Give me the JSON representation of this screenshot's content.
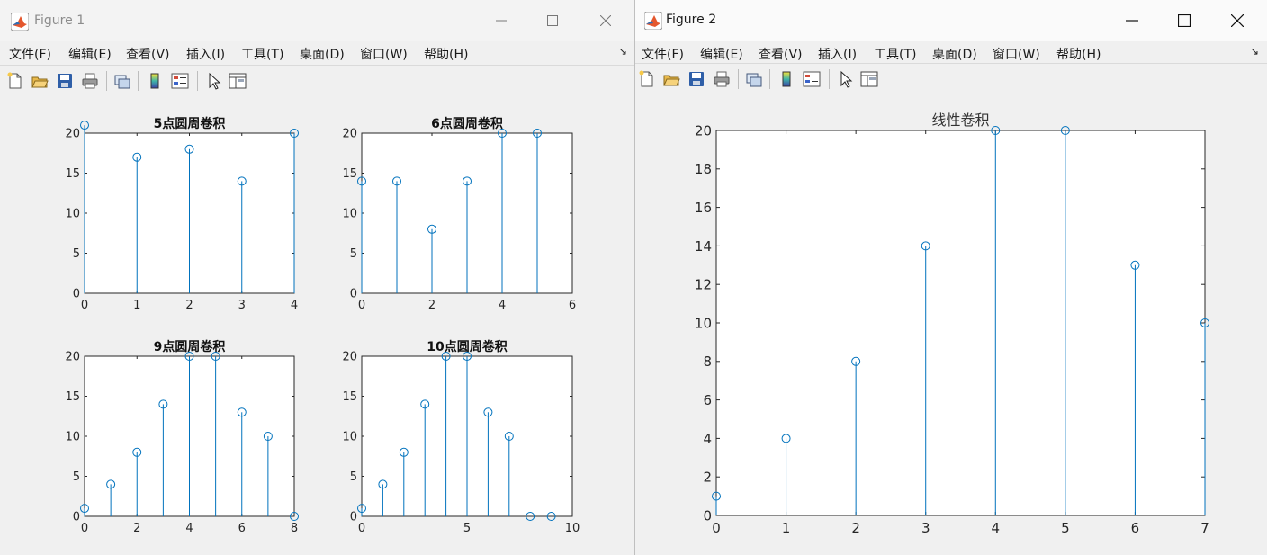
{
  "figure1": {
    "title": "Figure 1",
    "menu": [
      "文件(F)",
      "编辑(E)",
      "查看(V)",
      "插入(I)",
      "工具(T)",
      "桌面(D)",
      "窗口(W)",
      "帮助(H)"
    ],
    "menu_arrow": "↘"
  },
  "figure2": {
    "title": "Figure 2",
    "menu": [
      "文件(F)",
      "编辑(E)",
      "查看(V)",
      "插入(I)",
      "工具(T)",
      "桌面(D)",
      "窗口(W)",
      "帮助(H)"
    ],
    "menu_arrow": "↘"
  },
  "toolbar_icons": [
    "new-figure-icon",
    "open-file-icon",
    "save-icon",
    "print-icon",
    "link-plot-icon",
    "colorbar-icon",
    "legend-icon",
    "pointer-icon",
    "property-editor-icon"
  ],
  "colors": {
    "stem": "#0072bd"
  },
  "chart_data": [
    {
      "type": "stem",
      "title": "5点圆周卷积",
      "x": [
        0,
        1,
        2,
        3,
        4
      ],
      "values": [
        21,
        17,
        18,
        14,
        20
      ],
      "xlim": [
        0,
        4
      ],
      "ylim": [
        0,
        20
      ],
      "xticks": [
        0,
        1,
        2,
        3,
        4
      ],
      "yticks": [
        0,
        5,
        10,
        15,
        20
      ],
      "grid": false
    },
    {
      "type": "stem",
      "title": "6点圆周卷积",
      "x": [
        0,
        1,
        2,
        3,
        4,
        5
      ],
      "values": [
        14,
        14,
        8,
        14,
        20,
        20
      ],
      "xlim": [
        0,
        6
      ],
      "ylim": [
        0,
        20
      ],
      "xticks": [
        0,
        2,
        4,
        6
      ],
      "yticks": [
        0,
        5,
        10,
        15,
        20
      ],
      "grid": false
    },
    {
      "type": "stem",
      "title": "9点圆周卷积",
      "x": [
        0,
        1,
        2,
        3,
        4,
        5,
        6,
        7,
        8
      ],
      "values": [
        1,
        4,
        8,
        14,
        20,
        20,
        13,
        10,
        0
      ],
      "xlim": [
        0,
        8
      ],
      "ylim": [
        0,
        20
      ],
      "xticks": [
        0,
        2,
        4,
        6,
        8
      ],
      "yticks": [
        0,
        5,
        10,
        15,
        20
      ],
      "grid": false
    },
    {
      "type": "stem",
      "title": "10点圆周卷积",
      "x": [
        0,
        1,
        2,
        3,
        4,
        5,
        6,
        7,
        8,
        9
      ],
      "values": [
        1,
        4,
        8,
        14,
        20,
        20,
        13,
        10,
        0,
        0
      ],
      "xlim": [
        0,
        10
      ],
      "ylim": [
        0,
        20
      ],
      "xticks": [
        0,
        5,
        10
      ],
      "yticks": [
        0,
        5,
        10,
        15,
        20
      ],
      "grid": false
    },
    {
      "type": "stem",
      "title": "线性卷积",
      "x": [
        0,
        1,
        2,
        3,
        4,
        5,
        6,
        7
      ],
      "values": [
        1,
        4,
        8,
        14,
        20,
        20,
        13,
        10
      ],
      "xlim": [
        0,
        7
      ],
      "ylim": [
        0,
        20
      ],
      "xticks": [
        0,
        1,
        2,
        3,
        4,
        5,
        6,
        7
      ],
      "yticks": [
        0,
        2,
        4,
        6,
        8,
        10,
        12,
        14,
        16,
        18,
        20
      ],
      "grid": false
    }
  ]
}
